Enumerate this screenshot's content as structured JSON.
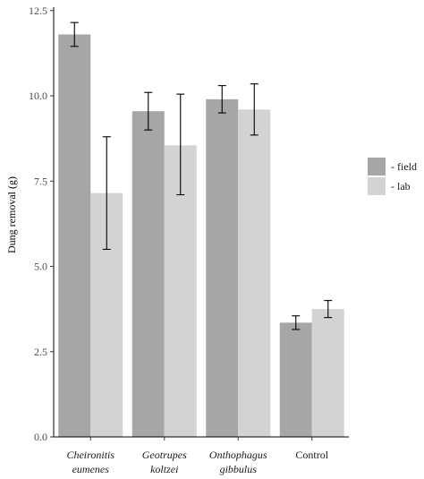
{
  "chart_data": {
    "type": "bar",
    "title": "",
    "xlabel": "",
    "ylabel": "Dung removal (g)",
    "ylim": [
      0,
      12.6
    ],
    "yticks": [
      "0.0",
      "2.5",
      "5.0",
      "7.5",
      "10.0",
      "12.5"
    ],
    "categories": [
      {
        "lines": [
          "Cheironitis",
          "eumenes"
        ],
        "italic": true
      },
      {
        "lines": [
          "Geotrupes",
          "koltzei"
        ],
        "italic": true
      },
      {
        "lines": [
          "Onthophagus",
          "gibbulus"
        ],
        "italic": true
      },
      {
        "lines": [
          "Control"
        ],
        "italic": false
      }
    ],
    "series": [
      {
        "name": "- field",
        "color": "#a6a6a6",
        "values": [
          11.8,
          9.55,
          9.9,
          3.35
        ],
        "err_low": [
          11.45,
          9.0,
          9.5,
          3.15
        ],
        "err_high": [
          12.15,
          10.1,
          10.3,
          3.55
        ]
      },
      {
        "name": "- lab",
        "color": "#d3d3d3",
        "values": [
          7.15,
          8.55,
          9.6,
          3.75
        ],
        "err_low": [
          5.5,
          7.1,
          8.85,
          3.5
        ],
        "err_high": [
          8.8,
          10.05,
          10.35,
          4.0
        ]
      }
    ],
    "grid": false,
    "legend_position": "right"
  }
}
